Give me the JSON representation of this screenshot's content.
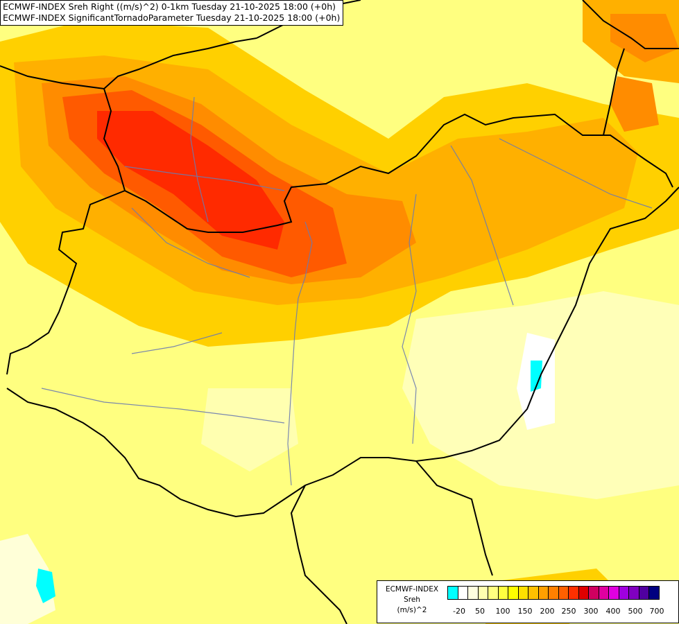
{
  "header": {
    "line1": "ECMWF-INDEX Sreh Right ((m/s)^2) 0-1km Tuesday 21-10-2025 18:00 (+0h)",
    "line2": "ECMWF-INDEX SignificantTornadoParameter Tuesday 21-10-2025 18:00 (+0h)"
  },
  "legend": {
    "title1": "ECMWF-INDEX",
    "title2": "Sreh",
    "title3": "(m/s)^2",
    "colors": [
      "#00ffff",
      "#ffffff",
      "#ffffe0",
      "#ffffb0",
      "#ffff80",
      "#ffff40",
      "#ffff00",
      "#ffe000",
      "#ffc000",
      "#ffa000",
      "#ff8000",
      "#ff6000",
      "#ff3000",
      "#e00000",
      "#d00060",
      "#e000a0",
      "#e000e0",
      "#a000e0",
      "#8000c0",
      "#5000a0",
      "#000080"
    ],
    "ticks": [
      "-20",
      "50",
      "100",
      "150",
      "200",
      "250",
      "300",
      "400",
      "500",
      "700"
    ]
  }
}
